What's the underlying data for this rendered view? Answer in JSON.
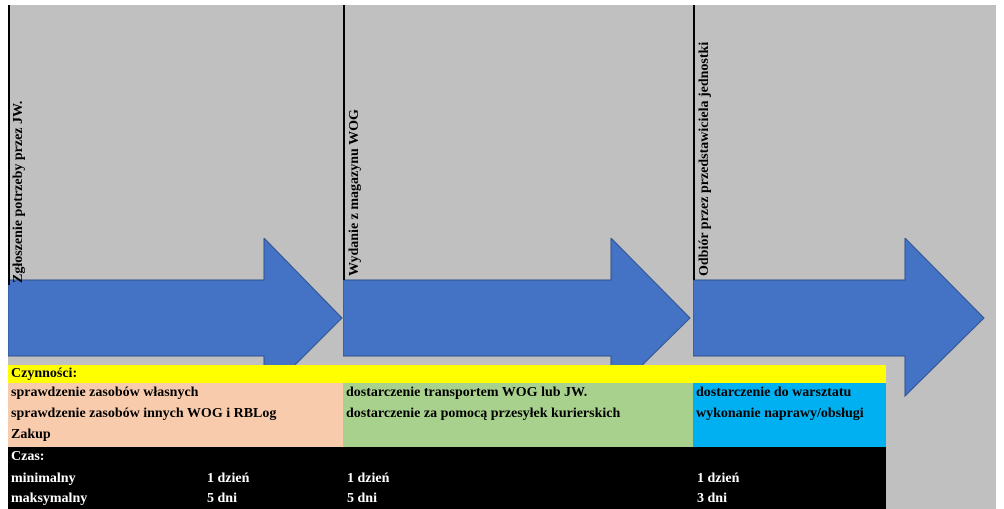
{
  "stages": [
    {
      "label": "Zgłoszenie potrzeby przez JW."
    },
    {
      "label": "Wydanie z magazynu WOG"
    },
    {
      "label": "Odbiór przez przedstawiciela jednostki"
    }
  ],
  "activities": {
    "header": "Czynności:",
    "groups": [
      {
        "color": "#f8cbad",
        "lines": [
          "sprawdzenie zasobów własnych",
          "sprawdzenie zasobów innych WOG i RBLog",
          "Zakup"
        ]
      },
      {
        "color": "#a9d18e",
        "lines": [
          "dostarczenie transportem WOG lub JW.",
          "dostarczenie za pomocą przesyłek kurierskich"
        ]
      },
      {
        "color": "#00b0f0",
        "lines": [
          "dostarczenie do warsztatu",
          "wykonanie naprawy/obsługi"
        ]
      }
    ]
  },
  "time": {
    "header": "Czas:",
    "rows": [
      {
        "label": "minimalny",
        "values": [
          "1 dzień",
          "1 dzień",
          "1 dzień"
        ]
      },
      {
        "label": "maksymalny",
        "values": [
          "5 dni",
          "5 dni",
          "3 dni"
        ]
      }
    ]
  },
  "colors": {
    "background": "#c0c0c0",
    "arrow": "#4472c4",
    "arrow_border": "#2f528f",
    "header_bar": "#ffff00",
    "time_bar": "#000000"
  }
}
